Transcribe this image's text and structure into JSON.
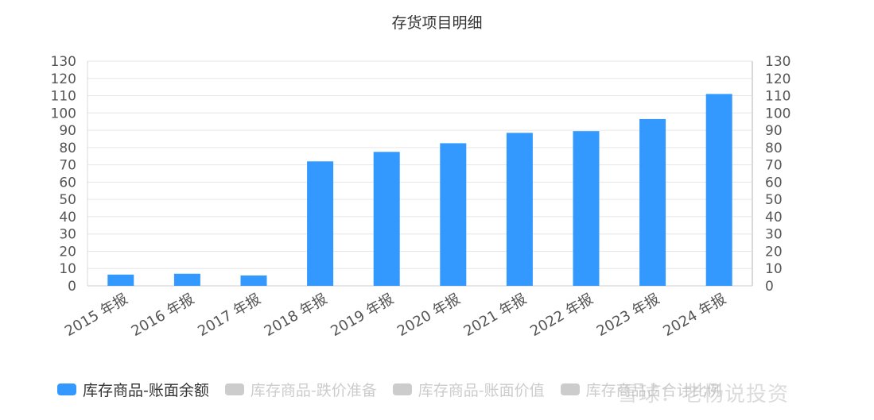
{
  "chart_data": {
    "type": "bar",
    "title": "存货项目明细",
    "categories": [
      "2015 年报",
      "2016 年报",
      "2017 年报",
      "2018 年报",
      "2019 年报",
      "2020 年报",
      "2021 年报",
      "2022 年报",
      "2023 年报",
      "2024 年报"
    ],
    "series": [
      {
        "name": "库存商品-账面余额",
        "values": [
          6.5,
          7,
          6,
          72,
          77.5,
          82.5,
          88.5,
          89.5,
          96.5,
          111
        ],
        "color": "#3399ff",
        "visible": true
      }
    ],
    "hidden_series": [
      {
        "name": "库存商品-跌价准备",
        "color": "#cccccc"
      },
      {
        "name": "库存商品-账面价值",
        "color": "#cccccc"
      },
      {
        "name": "库存商品占合计比例",
        "color": "#cccccc"
      }
    ],
    "ylim": [
      0,
      130
    ],
    "yticks": [
      0,
      10,
      20,
      30,
      40,
      50,
      60,
      70,
      80,
      90,
      100,
      110,
      120,
      130
    ],
    "y2ticks": [
      0,
      10,
      20,
      30,
      40,
      50,
      60,
      70,
      80,
      90,
      100,
      110,
      120,
      130
    ],
    "grid": true,
    "legend_position": "bottom-left"
  },
  "watermark": "雪球：老杨说投资"
}
